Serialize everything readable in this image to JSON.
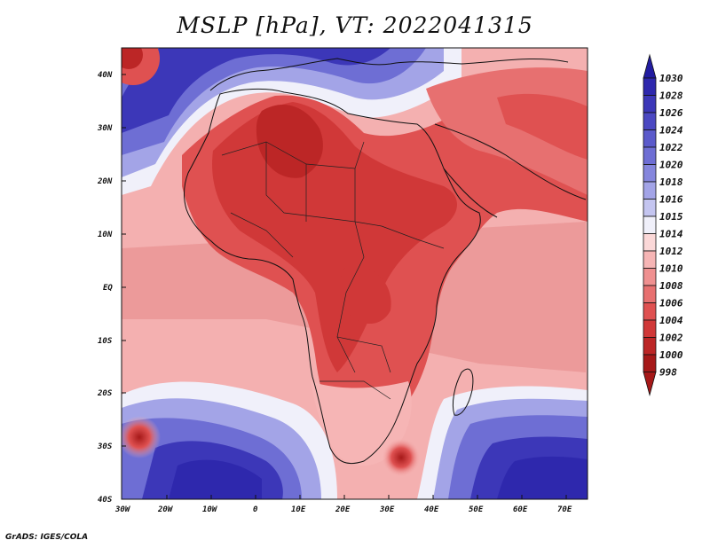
{
  "title": "MSLP [hPa], VT: 2022041315",
  "footer": "GrADS: IGES/COLA",
  "lat_ticks": [
    "40N",
    "30N",
    "20N",
    "10N",
    "EQ",
    "10S",
    "20S",
    "30S",
    "40S"
  ],
  "lon_ticks": [
    "30W",
    "20W",
    "10W",
    "0",
    "10E",
    "20E",
    "30E",
    "40E",
    "50E",
    "60E",
    "70E"
  ],
  "colorbar": {
    "levels": [
      "1030",
      "1028",
      "1026",
      "1024",
      "1022",
      "1020",
      "1018",
      "1016",
      "1015",
      "1014",
      "1012",
      "1010",
      "1008",
      "1006",
      "1004",
      "1002",
      "1000",
      "998"
    ],
    "colors": [
      "#221ca0",
      "#2e28ad",
      "#3c37b8",
      "#4b48c2",
      "#5b5acb",
      "#6e6ed4",
      "#8586dd",
      "#a3a4e7",
      "#c4c5f0",
      "#f0f0fa",
      "#fbd8d8",
      "#f6b5b5",
      "#ef9090",
      "#e77070",
      "#df5151",
      "#d03838",
      "#bc2626",
      "#a61919"
    ]
  },
  "colors": {
    "high": "#2e2aa8",
    "low": "#b22222",
    "land_low": "#d64545",
    "ocean_mid": "#f4b0b0"
  }
}
